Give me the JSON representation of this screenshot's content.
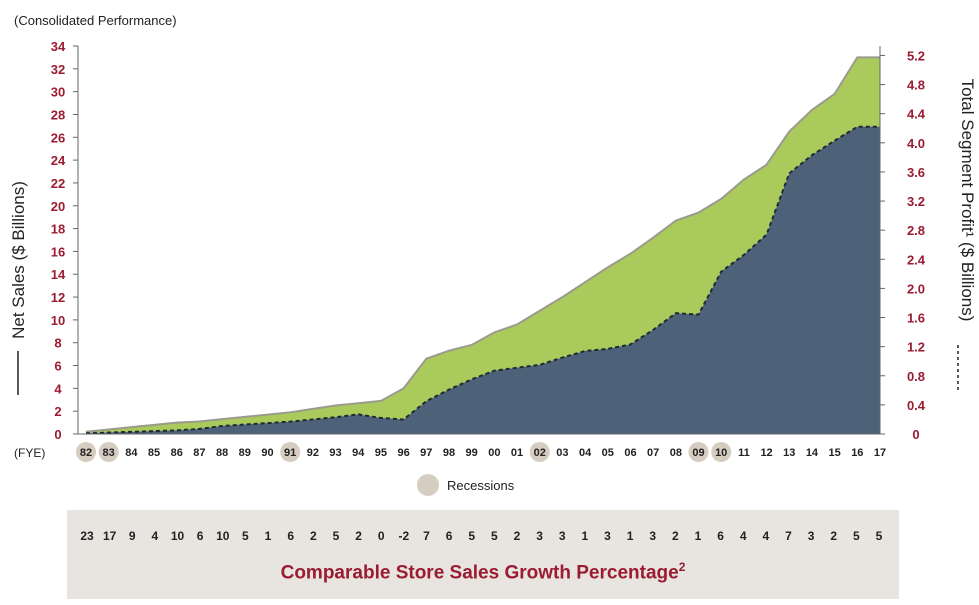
{
  "subtitle": "(Consolidated Performance)",
  "fye_label": "(FYE)",
  "legend_label": "Recessions",
  "colors": {
    "net_sales_fill": "#aacb5b",
    "profit_fill": "#4d6278",
    "recession_marker": "#d5cdc0",
    "tick_red": "#9b1b30",
    "growth_bg": "#e8e4df"
  },
  "chart_data": {
    "type": "area",
    "left_axis": {
      "label": "Net Sales ($ Billions)",
      "range": [
        0,
        34
      ],
      "ticks": [
        "0",
        "2",
        "4",
        "6",
        "8",
        "10",
        "12",
        "14",
        "16",
        "18",
        "20",
        "22",
        "24",
        "26",
        "28",
        "30",
        "32",
        "34"
      ]
    },
    "right_axis": {
      "label": "Total Segment Profit¹ ($ Billions)",
      "range": [
        0,
        5.33
      ],
      "ticks": [
        "0",
        "0.4",
        "0.8",
        "1.2",
        "1.6",
        "2.0",
        "2.4",
        "2.8",
        "3.2",
        "3.6",
        "4.0",
        "4.4",
        "4.8",
        "5.2"
      ]
    },
    "years": [
      "82",
      "83",
      "84",
      "85",
      "86",
      "87",
      "88",
      "89",
      "90",
      "91",
      "92",
      "93",
      "94",
      "95",
      "96",
      "97",
      "98",
      "99",
      "00",
      "01",
      "02",
      "03",
      "04",
      "05",
      "06",
      "07",
      "08",
      "09",
      "10",
      "11",
      "12",
      "13",
      "14",
      "15",
      "16",
      "17"
    ],
    "recession_years": [
      "82",
      "83",
      "91",
      "02",
      "09",
      "10"
    ],
    "series": [
      {
        "name": "Net Sales",
        "axis": "left",
        "values": [
          0.2,
          0.4,
          0.6,
          0.8,
          1.0,
          1.1,
          1.3,
          1.5,
          1.7,
          1.9,
          2.2,
          2.5,
          2.7,
          2.9,
          4.0,
          6.6,
          7.3,
          7.8,
          8.9,
          9.6,
          10.8,
          12.0,
          13.3,
          14.6,
          15.8,
          17.2,
          18.7,
          19.4,
          20.6,
          22.3,
          23.6,
          26.5,
          28.4,
          29.8,
          33.0,
          33.0
        ]
      },
      {
        "name": "Total Segment Profit",
        "axis": "right",
        "values": [
          0.01,
          0.02,
          0.03,
          0.04,
          0.05,
          0.07,
          0.11,
          0.13,
          0.15,
          0.17,
          0.2,
          0.23,
          0.27,
          0.22,
          0.2,
          0.45,
          0.61,
          0.75,
          0.87,
          0.91,
          0.95,
          1.05,
          1.14,
          1.17,
          1.23,
          1.43,
          1.66,
          1.64,
          2.23,
          2.46,
          2.74,
          3.58,
          3.83,
          4.03,
          4.22,
          4.22
        ]
      }
    ],
    "growth_title": "Comparable Store Sales Growth Percentage",
    "growth_title_sup": "2",
    "growth_values": [
      "23",
      "17",
      "9",
      "4",
      "10",
      "6",
      "10",
      "5",
      "1",
      "6",
      "2",
      "5",
      "2",
      "0",
      "-2",
      "7",
      "6",
      "5",
      "5",
      "2",
      "3",
      "3",
      "1",
      "3",
      "1",
      "3",
      "2",
      "1",
      "6",
      "4",
      "4",
      "7",
      "3",
      "2",
      "5",
      "5"
    ]
  }
}
